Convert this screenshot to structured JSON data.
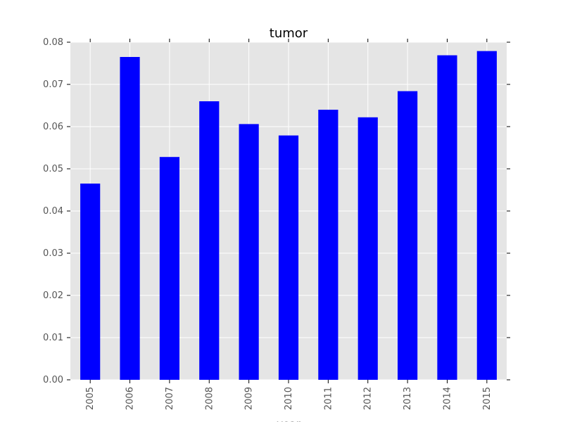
{
  "chart_data": {
    "type": "bar",
    "title": "tumor",
    "xlabel": "year",
    "ylabel": "",
    "categories": [
      "2005",
      "2006",
      "2007",
      "2008",
      "2009",
      "2010",
      "2011",
      "2012",
      "2013",
      "2014",
      "2015"
    ],
    "values": [
      0.0465,
      0.0765,
      0.0528,
      0.066,
      0.0606,
      0.0579,
      0.064,
      0.0622,
      0.0684,
      0.0769,
      0.0779
    ],
    "ylim": [
      0,
      0.08
    ],
    "yticks": [
      "0.00",
      "0.01",
      "0.02",
      "0.03",
      "0.04",
      "0.05",
      "0.06",
      "0.07",
      "0.08"
    ],
    "grid": true,
    "legend": "none",
    "colors": {
      "bar": "#0000ff",
      "plot_background": "#e5e5e5",
      "grid": "#ffffff",
      "tick_text": "#555555"
    }
  }
}
